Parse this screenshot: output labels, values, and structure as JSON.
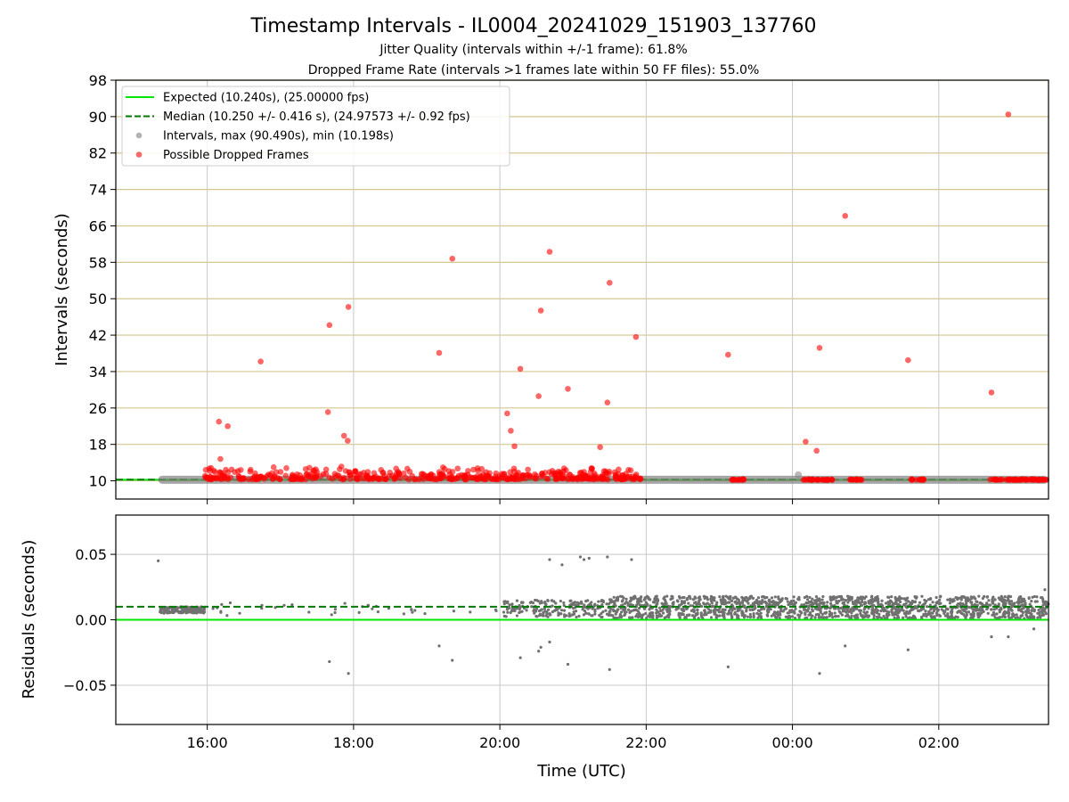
{
  "chart_data": {
    "title": "Timestamp Intervals - IL0004_20241029_151903_137760",
    "subtitle1": "Jitter Quality (intervals within +/-1 frame): 61.8%",
    "subtitle2": "Dropped Frame Rate (intervals >1 frames late within 50 FF files): 55.0%",
    "x_axis": {
      "label": "Time (UTC)",
      "unit": "hours since 00:00 of 2024-10-29 (UTC)",
      "range": [
        14.75,
        27.5
      ],
      "ticks": [
        16,
        18,
        20,
        22,
        24,
        26
      ],
      "tick_labels": [
        "16:00",
        "18:00",
        "20:00",
        "22:00",
        "00:00",
        "02:00"
      ]
    },
    "panels": [
      {
        "type": "scatter",
        "ylabel": "Intervals (seconds)",
        "ylim": [
          6,
          98
        ],
        "yticks": [
          10,
          18,
          26,
          34,
          42,
          50,
          58,
          66,
          74,
          82,
          90,
          98
        ],
        "grid": "x and y; y gridlines colored tan",
        "legend_position": "top-left",
        "legend": [
          {
            "label": "Expected (10.240s), (25.00000 fps)",
            "style": "solid-line",
            "color": "#00e600"
          },
          {
            "label": "Median (10.250 +/- 0.416 s), (24.97573 +/- 0.92 fps)",
            "style": "dashed-line",
            "color": "#007a00"
          },
          {
            "label": "Intervals, max (90.490s), min (10.198s)",
            "style": "marker",
            "color": "#808080"
          },
          {
            "label": "Possible Dropped Frames",
            "style": "marker",
            "color": "#ff0000"
          }
        ],
        "reference_lines": [
          {
            "name": "Expected",
            "y": 10.24,
            "color": "#00e600",
            "style": "solid"
          },
          {
            "name": "Median",
            "y": 10.25,
            "color": "#007a00",
            "style": "dashed"
          }
        ],
        "normal_intervals_band": {
          "x_start": 15.33,
          "x_end": 27.5,
          "y": 10.24,
          "color": "#808080"
        },
        "dropped_frame_clusters": [
          {
            "x_start": 15.97,
            "x_end": 21.95,
            "y_min": 10.3,
            "y_max": 13.2
          },
          {
            "x_start": 23.15,
            "x_end": 23.35,
            "y_min": 10.2,
            "y_max": 10.4
          },
          {
            "x_start": 24.15,
            "x_end": 24.55,
            "y_min": 10.2,
            "y_max": 10.4
          },
          {
            "x_start": 24.75,
            "x_end": 24.95,
            "y_min": 10.2,
            "y_max": 10.4
          },
          {
            "x_start": 25.6,
            "x_end": 25.8,
            "y_min": 10.2,
            "y_max": 10.4
          },
          {
            "x_start": 26.7,
            "x_end": 27.5,
            "y_min": 10.2,
            "y_max": 10.4
          }
        ],
        "dropped_frame_outliers": [
          {
            "x": 16.16,
            "y": 23.0
          },
          {
            "x": 16.18,
            "y": 14.8
          },
          {
            "x": 16.28,
            "y": 22.0
          },
          {
            "x": 16.73,
            "y": 36.2
          },
          {
            "x": 17.65,
            "y": 25.1
          },
          {
            "x": 17.67,
            "y": 44.2
          },
          {
            "x": 17.87,
            "y": 19.9
          },
          {
            "x": 17.92,
            "y": 18.8
          },
          {
            "x": 17.93,
            "y": 48.2
          },
          {
            "x": 19.17,
            "y": 38.1
          },
          {
            "x": 19.35,
            "y": 58.8
          },
          {
            "x": 20.1,
            "y": 24.8
          },
          {
            "x": 20.15,
            "y": 21.0
          },
          {
            "x": 20.2,
            "y": 17.6
          },
          {
            "x": 20.28,
            "y": 34.6
          },
          {
            "x": 20.53,
            "y": 28.6
          },
          {
            "x": 20.56,
            "y": 47.4
          },
          {
            "x": 20.68,
            "y": 60.3
          },
          {
            "x": 20.93,
            "y": 30.2
          },
          {
            "x": 21.37,
            "y": 17.4
          },
          {
            "x": 21.47,
            "y": 27.2
          },
          {
            "x": 21.5,
            "y": 53.5
          },
          {
            "x": 21.86,
            "y": 41.6
          },
          {
            "x": 23.12,
            "y": 37.7
          },
          {
            "x": 24.18,
            "y": 18.6
          },
          {
            "x": 24.33,
            "y": 16.6
          },
          {
            "x": 24.37,
            "y": 39.2
          },
          {
            "x": 24.72,
            "y": 68.2
          },
          {
            "x": 25.58,
            "y": 36.5
          },
          {
            "x": 26.72,
            "y": 29.4
          },
          {
            "x": 26.95,
            "y": 90.49
          }
        ],
        "gray_outlier": {
          "x": 24.08,
          "y": 11.3
        }
      },
      {
        "type": "scatter",
        "ylabel": "Residuals (seconds)",
        "ylim": [
          -0.08,
          0.08
        ],
        "yticks": [
          -0.05,
          0.0,
          0.05
        ],
        "ytick_labels": [
          "−0.05",
          "0.00",
          "0.05"
        ],
        "grid": "x and y",
        "reference_lines": [
          {
            "name": "Expected",
            "y": 0.0,
            "color": "#00e600",
            "style": "solid"
          },
          {
            "name": "Median",
            "y": 0.01,
            "color": "#007a00",
            "style": "dashed"
          }
        ],
        "residual_bands": [
          {
            "x_start": 15.35,
            "x_end": 15.97,
            "y_min": 0.005,
            "y_max": 0.01,
            "density": "dense"
          },
          {
            "x_start": 16.0,
            "x_end": 20.05,
            "y_min": 0.003,
            "y_max": 0.013,
            "density": "sparse"
          },
          {
            "x_start": 20.05,
            "x_end": 21.5,
            "y_min": 0.002,
            "y_max": 0.015,
            "density": "medium"
          },
          {
            "x_start": 21.5,
            "x_end": 27.5,
            "y_min": 0.001,
            "y_max": 0.018,
            "density": "dense"
          }
        ],
        "residual_outliers": [
          {
            "x": 15.33,
            "y": 0.045
          },
          {
            "x": 17.67,
            "y": -0.032
          },
          {
            "x": 17.93,
            "y": -0.041
          },
          {
            "x": 19.17,
            "y": -0.02
          },
          {
            "x": 19.35,
            "y": -0.031
          },
          {
            "x": 20.28,
            "y": -0.029
          },
          {
            "x": 20.53,
            "y": -0.024
          },
          {
            "x": 20.56,
            "y": -0.021
          },
          {
            "x": 20.68,
            "y": -0.017
          },
          {
            "x": 20.68,
            "y": 0.046
          },
          {
            "x": 20.85,
            "y": 0.042
          },
          {
            "x": 20.93,
            "y": -0.034
          },
          {
            "x": 21.1,
            "y": 0.048
          },
          {
            "x": 21.15,
            "y": 0.046
          },
          {
            "x": 21.22,
            "y": 0.047
          },
          {
            "x": 21.47,
            "y": 0.048
          },
          {
            "x": 21.5,
            "y": -0.038
          },
          {
            "x": 21.8,
            "y": 0.046
          },
          {
            "x": 23.12,
            "y": -0.036
          },
          {
            "x": 24.37,
            "y": -0.041
          },
          {
            "x": 24.72,
            "y": -0.02
          },
          {
            "x": 25.58,
            "y": -0.023
          },
          {
            "x": 26.72,
            "y": -0.013
          },
          {
            "x": 26.95,
            "y": -0.013
          },
          {
            "x": 27.3,
            "y": -0.007
          },
          {
            "x": 27.45,
            "y": 0.023
          }
        ]
      }
    ]
  }
}
